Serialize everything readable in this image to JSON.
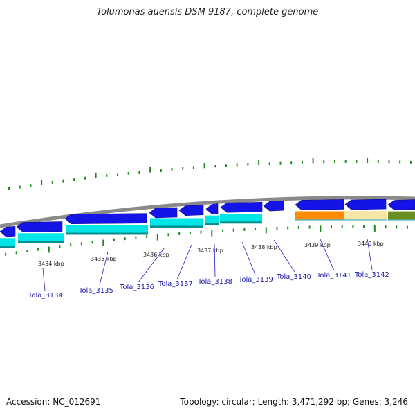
{
  "title": "Tolumonas auensis DSM 9187, complete genome",
  "footer": {
    "accession": "Accession: NC_012691",
    "summary": "Topology: circular; Length: 3,471,292 bp; Genes: 3,246"
  },
  "colors": {
    "backbone": "#8a8a8a",
    "tick": "#1e8a1e",
    "forward_gene": "#1414e6",
    "rna_track": "#00e6e6",
    "label_line": "#2020c0",
    "orange_feature": "#ff8c00",
    "tan_feature": "#f5e6a8",
    "olive_feature": "#6b8e23"
  },
  "scale_labels": [
    "3434 kbp",
    "3435 kbp",
    "3436 kbp",
    "3437 kbp",
    "3438 kbp",
    "3439 kbp",
    "3440 kbp"
  ],
  "gene_labels": [
    "Tola_3134",
    "Tola_3135",
    "Tola_3136",
    "Tola_3137",
    "Tola_3138",
    "Tola_3139",
    "Tola_3140",
    "Tola_3141",
    "Tola_3142"
  ]
}
